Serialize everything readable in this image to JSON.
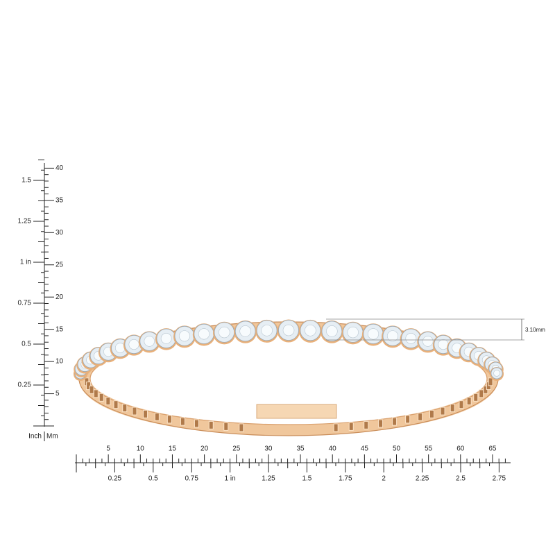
{
  "vertical_ruler": {
    "unit_inch": "Inch",
    "unit_mm": "Mm",
    "inch_labels": [
      "0.25",
      "0.5",
      "0.75",
      "1 in",
      "1.25",
      "1.5"
    ],
    "mm_labels": [
      "5",
      "10",
      "15",
      "20",
      "25",
      "30",
      "35",
      "40"
    ]
  },
  "horizontal_ruler": {
    "mm_labels": [
      "5",
      "10",
      "15",
      "20",
      "25",
      "30",
      "35",
      "40",
      "45",
      "50",
      "55",
      "60",
      "65"
    ],
    "inch_labels": [
      "0.25",
      "0.5",
      "0.75",
      "1 in",
      "1.25",
      "1.5",
      "1.75",
      "2",
      "2.25",
      "2.5",
      "2.75"
    ]
  },
  "dimension": {
    "label": "3.10mm"
  }
}
